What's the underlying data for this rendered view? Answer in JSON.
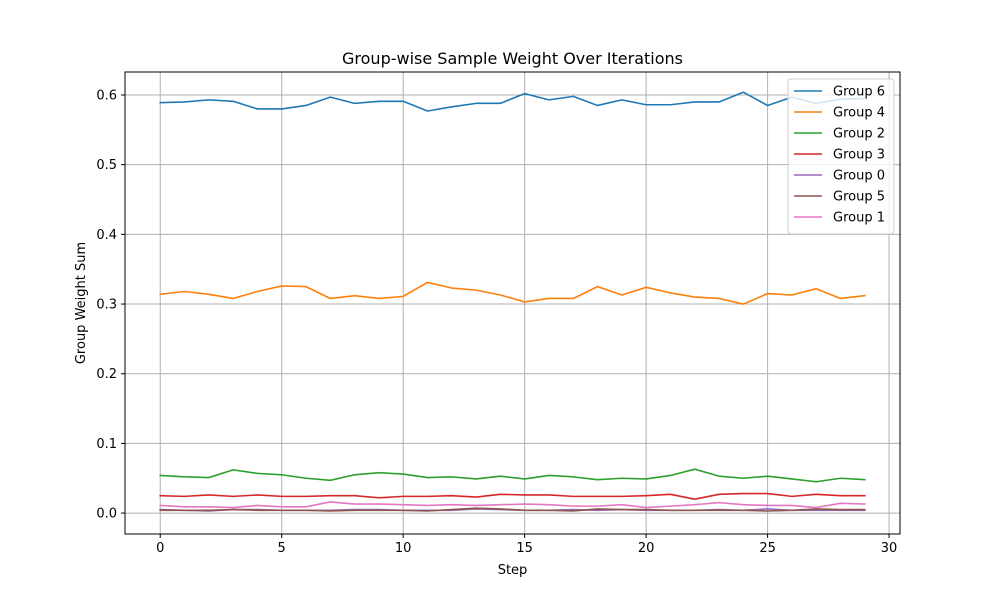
{
  "chart_data": {
    "type": "line",
    "title": "Group-wise Sample Weight Over Iterations",
    "xlabel": "Step",
    "ylabel": "Group Weight Sum",
    "xlim": [
      -1.45,
      30.45
    ],
    "ylim": [
      -0.03,
      0.633
    ],
    "xticks": [
      0,
      5,
      10,
      15,
      20,
      25,
      30
    ],
    "yticks": [
      0.0,
      0.1,
      0.2,
      0.3,
      0.4,
      0.5,
      0.6
    ],
    "grid": true,
    "legend_position": "top-right",
    "x": [
      0,
      1,
      2,
      3,
      4,
      5,
      6,
      7,
      8,
      9,
      10,
      11,
      12,
      13,
      14,
      15,
      16,
      17,
      18,
      19,
      20,
      21,
      22,
      23,
      24,
      25,
      26,
      27,
      28,
      29
    ],
    "series": [
      {
        "name": "Group 6",
        "color": "#1f77b4",
        "values": [
          0.589,
          0.59,
          0.593,
          0.591,
          0.58,
          0.58,
          0.585,
          0.597,
          0.588,
          0.591,
          0.591,
          0.577,
          0.583,
          0.588,
          0.588,
          0.602,
          0.593,
          0.598,
          0.585,
          0.593,
          0.586,
          0.586,
          0.59,
          0.59,
          0.604,
          0.585,
          0.597,
          0.588,
          0.594,
          0.595
        ]
      },
      {
        "name": "Group 4",
        "color": "#ff7f0e",
        "values": [
          0.314,
          0.318,
          0.314,
          0.308,
          0.318,
          0.326,
          0.325,
          0.308,
          0.312,
          0.308,
          0.311,
          0.331,
          0.323,
          0.32,
          0.313,
          0.303,
          0.308,
          0.308,
          0.325,
          0.313,
          0.324,
          0.316,
          0.31,
          0.308,
          0.3,
          0.315,
          0.313,
          0.322,
          0.308,
          0.312
        ]
      },
      {
        "name": "Group 2",
        "color": "#2ca02c",
        "values": [
          0.054,
          0.052,
          0.051,
          0.062,
          0.057,
          0.055,
          0.05,
          0.047,
          0.055,
          0.058,
          0.056,
          0.051,
          0.052,
          0.049,
          0.053,
          0.049,
          0.054,
          0.052,
          0.048,
          0.05,
          0.049,
          0.054,
          0.063,
          0.053,
          0.05,
          0.053,
          0.049,
          0.045,
          0.05,
          0.048
        ]
      },
      {
        "name": "Group 3",
        "color": "#d62728",
        "values": [
          0.025,
          0.024,
          0.026,
          0.024,
          0.026,
          0.024,
          0.024,
          0.025,
          0.025,
          0.022,
          0.024,
          0.024,
          0.025,
          0.023,
          0.027,
          0.026,
          0.026,
          0.024,
          0.024,
          0.024,
          0.025,
          0.027,
          0.02,
          0.027,
          0.028,
          0.028,
          0.024,
          0.027,
          0.025,
          0.025
        ]
      },
      {
        "name": "Group 0",
        "color": "#9467bd",
        "values": [
          0.005,
          0.004,
          0.003,
          0.005,
          0.005,
          0.004,
          0.004,
          0.004,
          0.005,
          0.005,
          0.004,
          0.004,
          0.004,
          0.006,
          0.005,
          0.004,
          0.004,
          0.005,
          0.004,
          0.005,
          0.004,
          0.004,
          0.004,
          0.005,
          0.004,
          0.006,
          0.004,
          0.004,
          0.004,
          0.004
        ]
      },
      {
        "name": "Group 5",
        "color": "#8c564b",
        "values": [
          0.004,
          0.004,
          0.004,
          0.005,
          0.004,
          0.004,
          0.004,
          0.003,
          0.004,
          0.004,
          0.004,
          0.003,
          0.005,
          0.007,
          0.006,
          0.004,
          0.004,
          0.003,
          0.006,
          0.005,
          0.005,
          0.004,
          0.004,
          0.004,
          0.004,
          0.003,
          0.004,
          0.006,
          0.005,
          0.005
        ]
      },
      {
        "name": "Group 1",
        "color": "#e377c2",
        "values": [
          0.011,
          0.009,
          0.009,
          0.008,
          0.011,
          0.009,
          0.009,
          0.016,
          0.013,
          0.013,
          0.012,
          0.011,
          0.012,
          0.011,
          0.012,
          0.013,
          0.012,
          0.01,
          0.01,
          0.012,
          0.008,
          0.01,
          0.012,
          0.015,
          0.012,
          0.011,
          0.011,
          0.008,
          0.014,
          0.013
        ]
      }
    ]
  }
}
